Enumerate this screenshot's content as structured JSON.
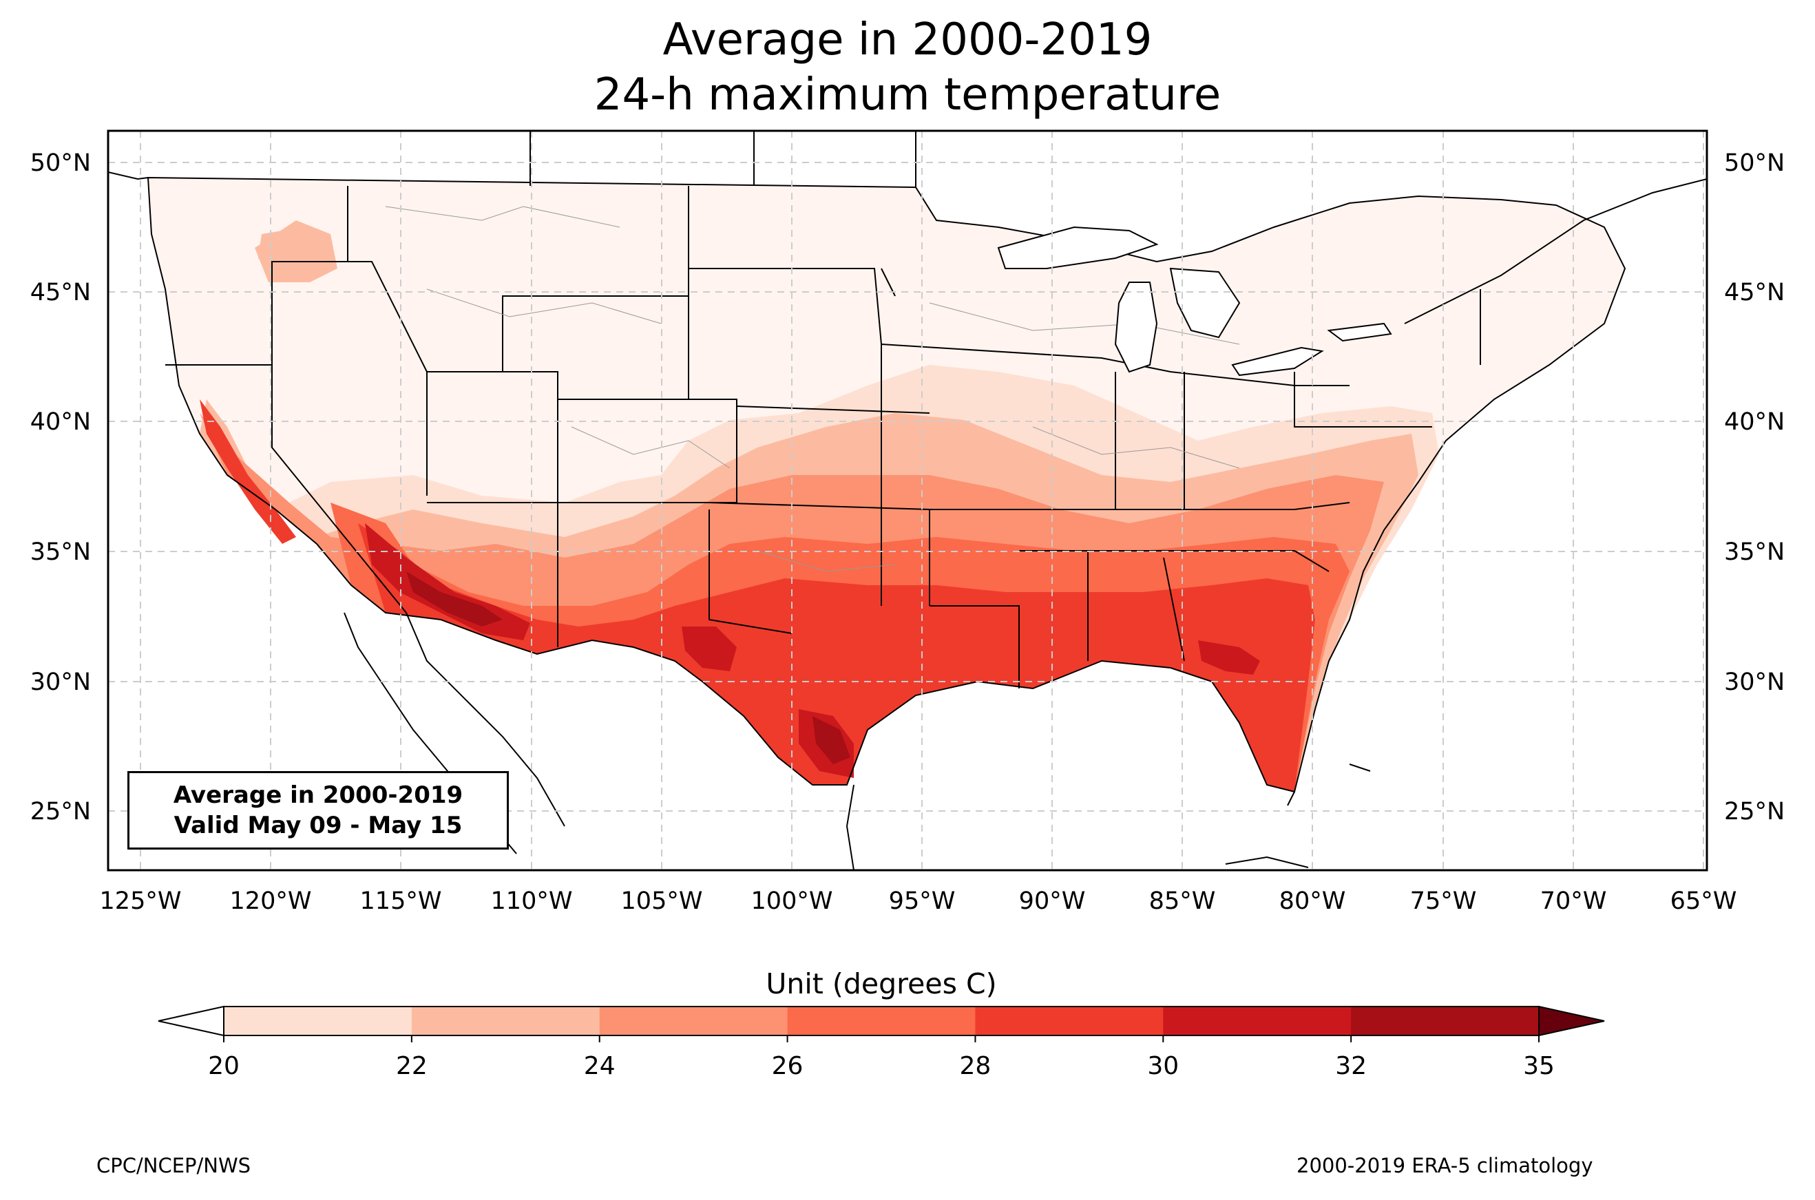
{
  "title": {
    "line1": "Average in 2000-2019",
    "line2": "24-h maximum temperature"
  },
  "map": {
    "lat_ticks": [
      "50°N",
      "45°N",
      "40°N",
      "35°N",
      "30°N",
      "25°N"
    ],
    "lon_ticks": [
      "125°W",
      "120°W",
      "115°W",
      "110°W",
      "105°W",
      "100°W",
      "95°W",
      "90°W",
      "85°W",
      "80°W",
      "75°W",
      "70°W",
      "65°W"
    ],
    "extent": {
      "lon": [
        -126.2,
        -64.9
      ],
      "lat": [
        22.7,
        51.1
      ]
    },
    "gridlines": true
  },
  "info_box": {
    "line1": "Average in 2000-2019",
    "line2": "Valid May 09 - May 15"
  },
  "colorbar": {
    "label": "Unit (degrees C)",
    "ticks": [
      "20",
      "22",
      "24",
      "26",
      "28",
      "30",
      "32",
      "35"
    ],
    "colors": [
      "#fee0d2",
      "#fcbba1",
      "#fc9272",
      "#fb6a4a",
      "#ef3b2c",
      "#cb181d",
      "#a50f15"
    ],
    "under_color": "#ffffff",
    "over_color": "#67000d",
    "extend": "both"
  },
  "footer": {
    "left": "CPC/NCEP/NWS",
    "right": "2000-2019 ERA-5 climatology"
  },
  "colors": {
    "grid": "#cccccc",
    "border": "#000000",
    "land_base": "#fff4f0"
  }
}
